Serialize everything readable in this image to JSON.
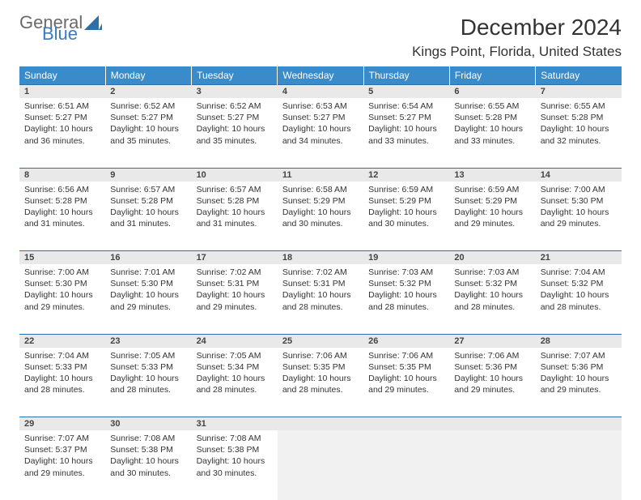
{
  "brand": {
    "part1": "General",
    "part2": "Blue"
  },
  "title": "December 2024",
  "location": "Kings Point, Florida, United States",
  "colors": {
    "header_bg": "#3a8bc9",
    "header_text": "#ffffff",
    "daynum_bg": "#e9e9e9",
    "border_accent": "#2f6fa8",
    "brand_gray": "#6a6a6a",
    "brand_blue": "#3a7bbf"
  },
  "weekdays": [
    "Sunday",
    "Monday",
    "Tuesday",
    "Wednesday",
    "Thursday",
    "Friday",
    "Saturday"
  ],
  "weeks": [
    [
      {
        "day": "1",
        "sunrise": "Sunrise: 6:51 AM",
        "sunset": "Sunset: 5:27 PM",
        "daylight": "Daylight: 10 hours and 36 minutes."
      },
      {
        "day": "2",
        "sunrise": "Sunrise: 6:52 AM",
        "sunset": "Sunset: 5:27 PM",
        "daylight": "Daylight: 10 hours and 35 minutes."
      },
      {
        "day": "3",
        "sunrise": "Sunrise: 6:52 AM",
        "sunset": "Sunset: 5:27 PM",
        "daylight": "Daylight: 10 hours and 35 minutes."
      },
      {
        "day": "4",
        "sunrise": "Sunrise: 6:53 AM",
        "sunset": "Sunset: 5:27 PM",
        "daylight": "Daylight: 10 hours and 34 minutes."
      },
      {
        "day": "5",
        "sunrise": "Sunrise: 6:54 AM",
        "sunset": "Sunset: 5:27 PM",
        "daylight": "Daylight: 10 hours and 33 minutes."
      },
      {
        "day": "6",
        "sunrise": "Sunrise: 6:55 AM",
        "sunset": "Sunset: 5:28 PM",
        "daylight": "Daylight: 10 hours and 33 minutes."
      },
      {
        "day": "7",
        "sunrise": "Sunrise: 6:55 AM",
        "sunset": "Sunset: 5:28 PM",
        "daylight": "Daylight: 10 hours and 32 minutes."
      }
    ],
    [
      {
        "day": "8",
        "sunrise": "Sunrise: 6:56 AM",
        "sunset": "Sunset: 5:28 PM",
        "daylight": "Daylight: 10 hours and 31 minutes."
      },
      {
        "day": "9",
        "sunrise": "Sunrise: 6:57 AM",
        "sunset": "Sunset: 5:28 PM",
        "daylight": "Daylight: 10 hours and 31 minutes."
      },
      {
        "day": "10",
        "sunrise": "Sunrise: 6:57 AM",
        "sunset": "Sunset: 5:28 PM",
        "daylight": "Daylight: 10 hours and 31 minutes."
      },
      {
        "day": "11",
        "sunrise": "Sunrise: 6:58 AM",
        "sunset": "Sunset: 5:29 PM",
        "daylight": "Daylight: 10 hours and 30 minutes."
      },
      {
        "day": "12",
        "sunrise": "Sunrise: 6:59 AM",
        "sunset": "Sunset: 5:29 PM",
        "daylight": "Daylight: 10 hours and 30 minutes."
      },
      {
        "day": "13",
        "sunrise": "Sunrise: 6:59 AM",
        "sunset": "Sunset: 5:29 PM",
        "daylight": "Daylight: 10 hours and 29 minutes."
      },
      {
        "day": "14",
        "sunrise": "Sunrise: 7:00 AM",
        "sunset": "Sunset: 5:30 PM",
        "daylight": "Daylight: 10 hours and 29 minutes."
      }
    ],
    [
      {
        "day": "15",
        "sunrise": "Sunrise: 7:00 AM",
        "sunset": "Sunset: 5:30 PM",
        "daylight": "Daylight: 10 hours and 29 minutes."
      },
      {
        "day": "16",
        "sunrise": "Sunrise: 7:01 AM",
        "sunset": "Sunset: 5:30 PM",
        "daylight": "Daylight: 10 hours and 29 minutes."
      },
      {
        "day": "17",
        "sunrise": "Sunrise: 7:02 AM",
        "sunset": "Sunset: 5:31 PM",
        "daylight": "Daylight: 10 hours and 29 minutes."
      },
      {
        "day": "18",
        "sunrise": "Sunrise: 7:02 AM",
        "sunset": "Sunset: 5:31 PM",
        "daylight": "Daylight: 10 hours and 28 minutes."
      },
      {
        "day": "19",
        "sunrise": "Sunrise: 7:03 AM",
        "sunset": "Sunset: 5:32 PM",
        "daylight": "Daylight: 10 hours and 28 minutes."
      },
      {
        "day": "20",
        "sunrise": "Sunrise: 7:03 AM",
        "sunset": "Sunset: 5:32 PM",
        "daylight": "Daylight: 10 hours and 28 minutes."
      },
      {
        "day": "21",
        "sunrise": "Sunrise: 7:04 AM",
        "sunset": "Sunset: 5:32 PM",
        "daylight": "Daylight: 10 hours and 28 minutes."
      }
    ],
    [
      {
        "day": "22",
        "sunrise": "Sunrise: 7:04 AM",
        "sunset": "Sunset: 5:33 PM",
        "daylight": "Daylight: 10 hours and 28 minutes."
      },
      {
        "day": "23",
        "sunrise": "Sunrise: 7:05 AM",
        "sunset": "Sunset: 5:33 PM",
        "daylight": "Daylight: 10 hours and 28 minutes."
      },
      {
        "day": "24",
        "sunrise": "Sunrise: 7:05 AM",
        "sunset": "Sunset: 5:34 PM",
        "daylight": "Daylight: 10 hours and 28 minutes."
      },
      {
        "day": "25",
        "sunrise": "Sunrise: 7:06 AM",
        "sunset": "Sunset: 5:35 PM",
        "daylight": "Daylight: 10 hours and 28 minutes."
      },
      {
        "day": "26",
        "sunrise": "Sunrise: 7:06 AM",
        "sunset": "Sunset: 5:35 PM",
        "daylight": "Daylight: 10 hours and 29 minutes."
      },
      {
        "day": "27",
        "sunrise": "Sunrise: 7:06 AM",
        "sunset": "Sunset: 5:36 PM",
        "daylight": "Daylight: 10 hours and 29 minutes."
      },
      {
        "day": "28",
        "sunrise": "Sunrise: 7:07 AM",
        "sunset": "Sunset: 5:36 PM",
        "daylight": "Daylight: 10 hours and 29 minutes."
      }
    ],
    [
      {
        "day": "29",
        "sunrise": "Sunrise: 7:07 AM",
        "sunset": "Sunset: 5:37 PM",
        "daylight": "Daylight: 10 hours and 29 minutes."
      },
      {
        "day": "30",
        "sunrise": "Sunrise: 7:08 AM",
        "sunset": "Sunset: 5:38 PM",
        "daylight": "Daylight: 10 hours and 30 minutes."
      },
      {
        "day": "31",
        "sunrise": "Sunrise: 7:08 AM",
        "sunset": "Sunset: 5:38 PM",
        "daylight": "Daylight: 10 hours and 30 minutes."
      },
      null,
      null,
      null,
      null
    ]
  ]
}
